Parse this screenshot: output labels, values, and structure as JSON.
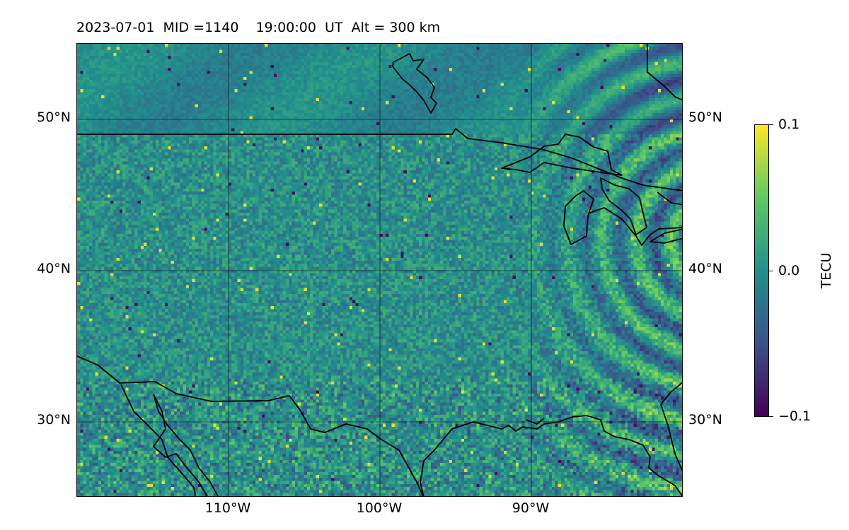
{
  "title": "2023-07-01  MID =1140    19:00:00  UT  Alt = 300 km",
  "map": {
    "lon_range": [
      -120,
      -80
    ],
    "lat_range": [
      25,
      55
    ],
    "latitude_ticks": [
      "50°N",
      "40°N",
      "30°N"
    ],
    "longitude_ticks": [
      "110°W",
      "100°W",
      "90°W"
    ],
    "gridlines": true,
    "coastlines": true,
    "colormap": "viridis"
  },
  "colorbar": {
    "label": "TECU",
    "max_label": "0.1",
    "mid_label": "0.0",
    "min_label": "−0.1",
    "range": [
      -0.1,
      0.1
    ]
  }
}
